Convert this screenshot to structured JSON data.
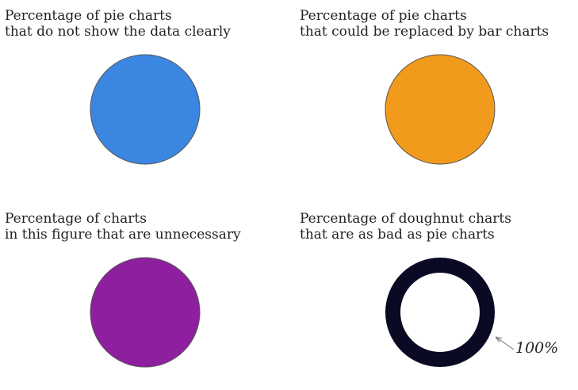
{
  "chart_data": [
    {
      "type": "pie",
      "title": [
        "Percentage of pie charts",
        "that do not show the data clearly"
      ],
      "slices": [
        {
          "value": 100,
          "color": "#3b86e0"
        }
      ]
    },
    {
      "type": "pie",
      "title": [
        "Percentage of pie charts",
        "that could be replaced by bar charts"
      ],
      "slices": [
        {
          "value": 100,
          "color": "#f29a1c"
        }
      ]
    },
    {
      "type": "pie",
      "title": [
        "Percentage of charts",
        " in this figure that are unnecessary"
      ],
      "slices": [
        {
          "value": 100,
          "color": "#8e1f9e"
        }
      ]
    },
    {
      "type": "doughnut",
      "title": [
        "Percentage of doughnut charts",
        " that are as bad as pie charts"
      ],
      "slices": [
        {
          "value": 100,
          "color": "#0a0a24"
        }
      ],
      "annotation": "100%"
    }
  ]
}
